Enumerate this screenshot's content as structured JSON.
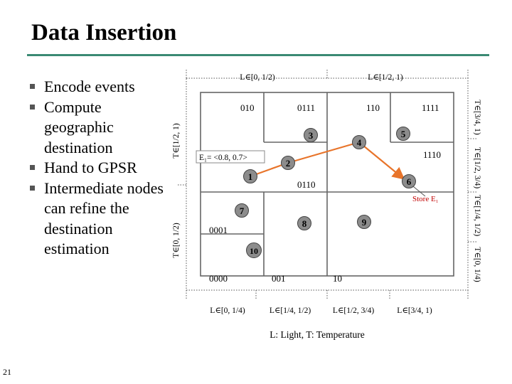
{
  "title": "Data Insertion",
  "bullets": [
    "Encode events",
    "Compute geographic destination",
    "Hand to GPSR",
    "Intermediate nodes can refine the destination estimation"
  ],
  "page_number": "21",
  "diagram": {
    "top_labels": [
      "L∈[0, 1/2)",
      "L∈[1/2, 1)"
    ],
    "bottom_labels": [
      "L∈[0, 1/4)",
      "L∈[1/4, 1/2)",
      "L∈[1/2, 3/4)",
      "L∈[3/4, 1)"
    ],
    "left_labels": [
      "T∈[1/2, 1)",
      "T∈[0, 1/2)"
    ],
    "right_labels": [
      "T∈[3/4, 1)",
      "T∈[1/2, 3/4)",
      "T∈[1/4, 1/2)",
      "T∈[0, 1/4)"
    ],
    "zone_codes": [
      "010",
      "0111",
      "110",
      "1111",
      "1110",
      "0110",
      "0001",
      "0000",
      "001",
      "10"
    ],
    "event_label": "E₁= <0.8, 0.7>",
    "store_label": "Store E₁",
    "caption": "L: Light, T: Temperature",
    "nodes": [
      "1",
      "2",
      "3",
      "4",
      "5",
      "6",
      "7",
      "8",
      "9",
      "10"
    ],
    "colors": {
      "arrow": "#e8742a",
      "node": "#8c8c8c",
      "rule": "#3b8a73",
      "store": "#c00000"
    }
  }
}
